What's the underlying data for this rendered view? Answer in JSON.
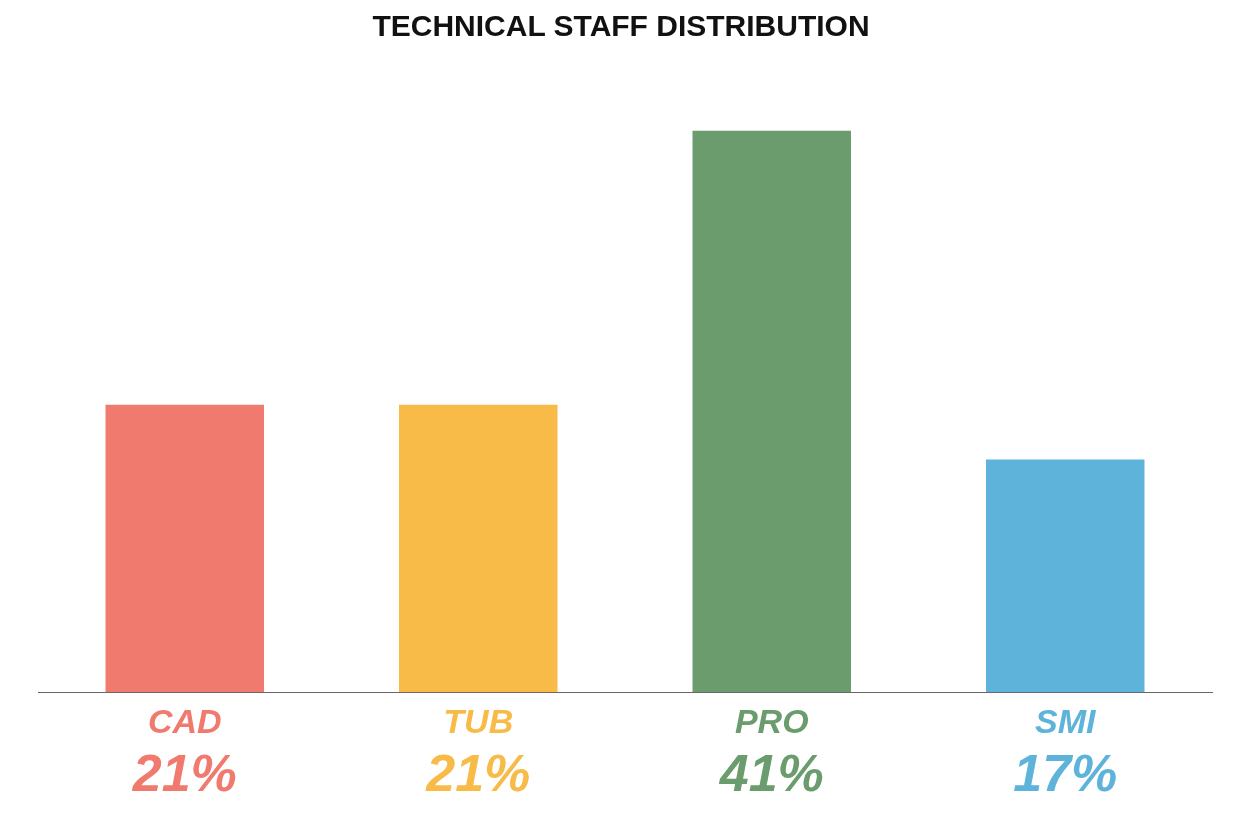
{
  "chart_data": {
    "type": "bar",
    "title": "TECHNICAL STAFF DISTRIBUTION",
    "categories": [
      "CAD",
      "TUB",
      "PRO",
      "SMI"
    ],
    "values": [
      21,
      21,
      41,
      17
    ],
    "colors": [
      "#f07a6e",
      "#f8bb48",
      "#6b9c6e",
      "#5db3da"
    ],
    "value_labels": [
      "21%",
      "21%",
      "41%",
      "17%"
    ],
    "relative": false
  }
}
